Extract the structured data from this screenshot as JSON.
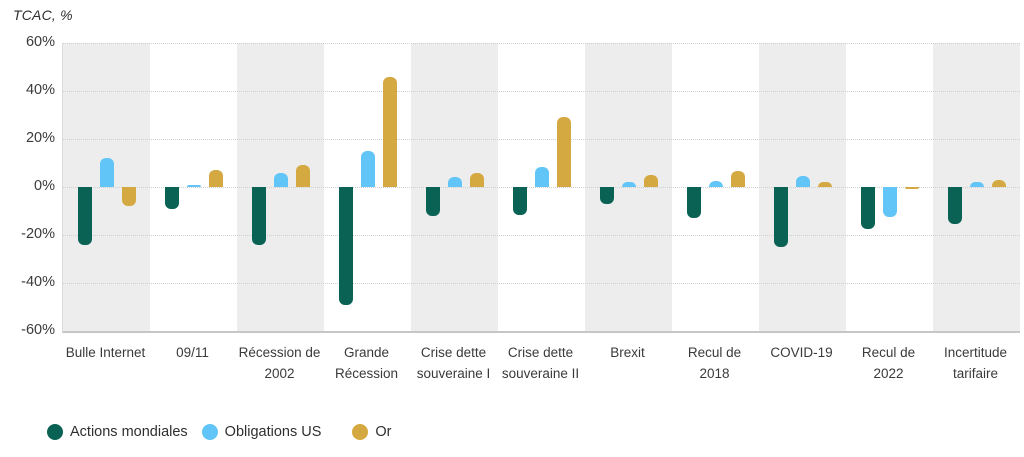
{
  "title": "TCAC, %",
  "chart_data": {
    "type": "bar",
    "title": "TCAC, %",
    "categories": [
      "Bulle Internet",
      "09/11",
      "Récession de 2002",
      "Grande Récession",
      "Crise dette souveraine I",
      "Crise dette souveraine II",
      "Brexit",
      "Recul de 2018",
      "COVID-19",
      "Recul de 2022",
      "Incertitude tarifaire"
    ],
    "series": [
      {
        "name": "Actions mondiales",
        "color": "#0A6254",
        "values": [
          -24,
          -9,
          -24,
          -49,
          -12,
          -11.5,
          -7,
          -13,
          -25,
          -17.5,
          -15.5
        ]
      },
      {
        "name": "Obligations US",
        "color": "#62C5F7",
        "values": [
          12,
          1,
          6,
          15,
          4,
          8.5,
          2,
          2.5,
          4.5,
          -12.5,
          2
        ]
      },
      {
        "name": "Or",
        "color": "#D5A942",
        "values": [
          -8,
          7,
          9,
          46,
          6,
          29,
          5,
          6.5,
          2,
          -0.5,
          3
        ]
      }
    ],
    "y_ticks": [
      "60%",
      "40%",
      "20%",
      "0%",
      "-20%",
      "-40%",
      "-60%"
    ],
    "ylim": [
      -60,
      60
    ],
    "xlabel": "",
    "ylabel": "TCAC, %",
    "grid": "horizontal-dotted",
    "legend_position": "bottom-left",
    "band_color_even": "#EDEDED",
    "band_color_odd": "#FFFFFF"
  }
}
